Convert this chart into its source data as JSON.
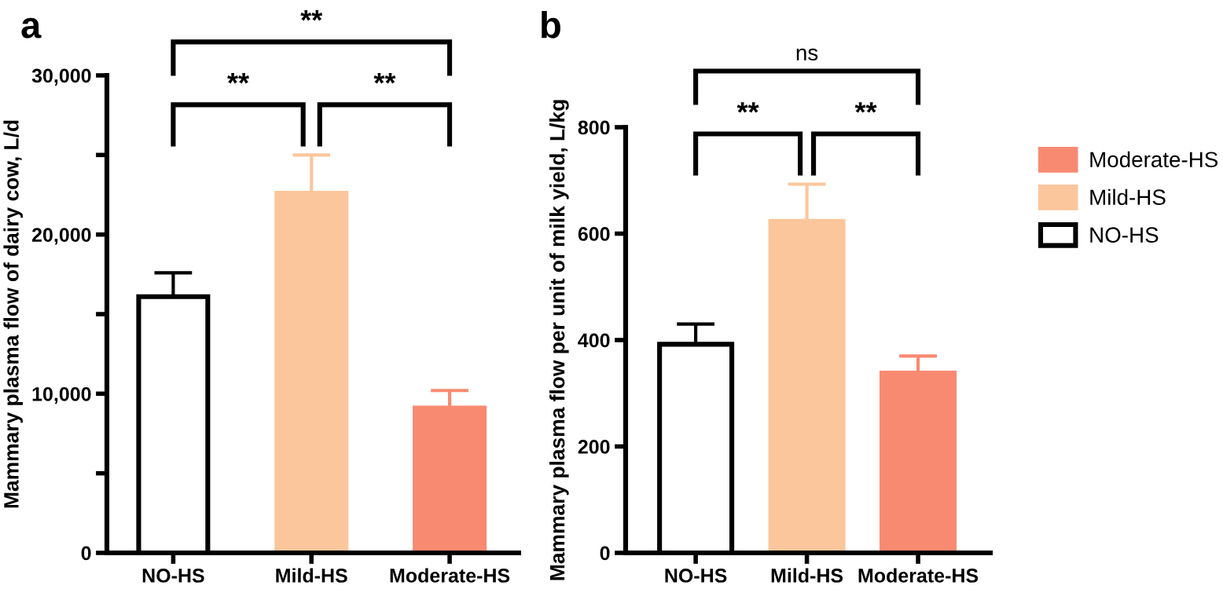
{
  "chart_data": [
    {
      "type": "bar",
      "title": "a",
      "ylabel": "Mammary plasma flow of dairy cow, L/d",
      "categories": [
        "NO-HS",
        "Mild-HS",
        "Moderate-HS"
      ],
      "values": [
        16100,
        22600,
        9100
      ],
      "colors": [
        "#ffffff",
        "#fcc69c",
        "#f98a72"
      ],
      "errors": [
        [
          16100,
          17600
        ],
        [
          22600,
          25000
        ],
        [
          9100,
          10200
        ]
      ],
      "ylim": [
        0,
        30000
      ],
      "yticks": [
        0,
        {
          "value": 5000,
          "label": null
        },
        {
          "value": 10000,
          "label": "10,000"
        },
        {
          "value": 15000,
          "label": null
        },
        {
          "value": 20000,
          "label": "20,000"
        },
        {
          "value": 25000,
          "label": null
        },
        {
          "value": 30000,
          "label": "30,000"
        }
      ],
      "annotations": [
        "**",
        "**",
        "**"
      ],
      "grid": false,
      "legend": false
    },
    {
      "type": "bar",
      "title": "b",
      "ylabel": "Mammary plasma flow per unit of milk yield, L/kg",
      "categories": [
        "NO-HS",
        "Mild-HS",
        "Moderate-HS"
      ],
      "series": [
        {
          "name": "NO-HS",
          "color": "#ffffff",
          "values": [
            392,
            null,
            null
          ],
          "errors": [
            [
              392,
              430
            ],
            null,
            null
          ]
        },
        {
          "name": "Mild-HS",
          "color": "#fcc69c",
          "values": [
            null,
            623,
            null
          ],
          "errors": [
            null,
            [
              623,
              693
            ],
            null
          ]
        },
        {
          "name": "Moderate-HS",
          "color": "#f98a72",
          "values": [
            null,
            null,
            338
          ],
          "errors": [
            null,
            null,
            [
              338,
              370
            ]
          ]
        }
      ],
      "ylim": [
        0,
        800
      ],
      "yticks": [
        0,
        200,
        400,
        600,
        800
      ],
      "annotations": [
        "ns",
        "**",
        "**"
      ],
      "grid": false,
      "legend": "right"
    }
  ]
}
